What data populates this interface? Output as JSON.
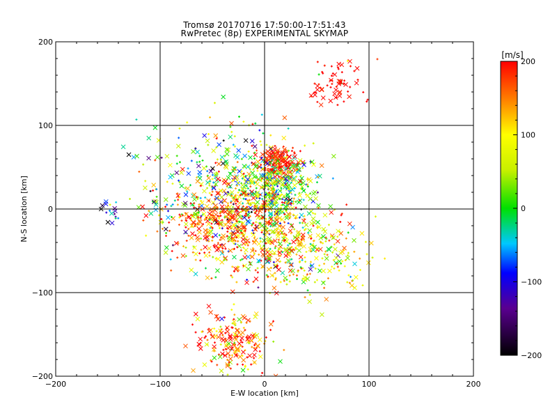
{
  "chart_data": {
    "type": "scatter",
    "title": "Tromsø 20170716 17:50:00-17:51:43",
    "subtitle": "RwPretec (8p) EXPERIMENTAL SKYMAP",
    "xlabel": "E-W location [km]",
    "ylabel": "N-S location [km]",
    "xlim": [
      -200,
      200
    ],
    "ylim": [
      -200,
      200
    ],
    "x_ticks": [
      "−200",
      "−100",
      "0",
      "100",
      "200"
    ],
    "y_ticks": [
      "200",
      "100",
      "0",
      "−100",
      "−200"
    ],
    "grid": true,
    "colorbar": {
      "label": "[m/s]",
      "range": [
        -200,
        200
      ],
      "ticks": [
        "200",
        "100",
        "0",
        "−100",
        "−200"
      ]
    },
    "clusters": [
      {
        "x": -32,
        "y": 18,
        "value": 30
      },
      {
        "x": 14,
        "y": 54,
        "value": 190
      },
      {
        "x": 10,
        "y": 25,
        "value": 20
      },
      {
        "x": 5,
        "y": -30,
        "value": 120
      },
      {
        "x": -45,
        "y": -15,
        "value": 170
      },
      {
        "x": -30,
        "y": -160,
        "value": 170
      },
      {
        "x": 70,
        "y": 150,
        "value": 200
      },
      {
        "x": -150,
        "y": -5,
        "value": -80
      },
      {
        "x": 55,
        "y": -60,
        "value": 90
      }
    ]
  }
}
